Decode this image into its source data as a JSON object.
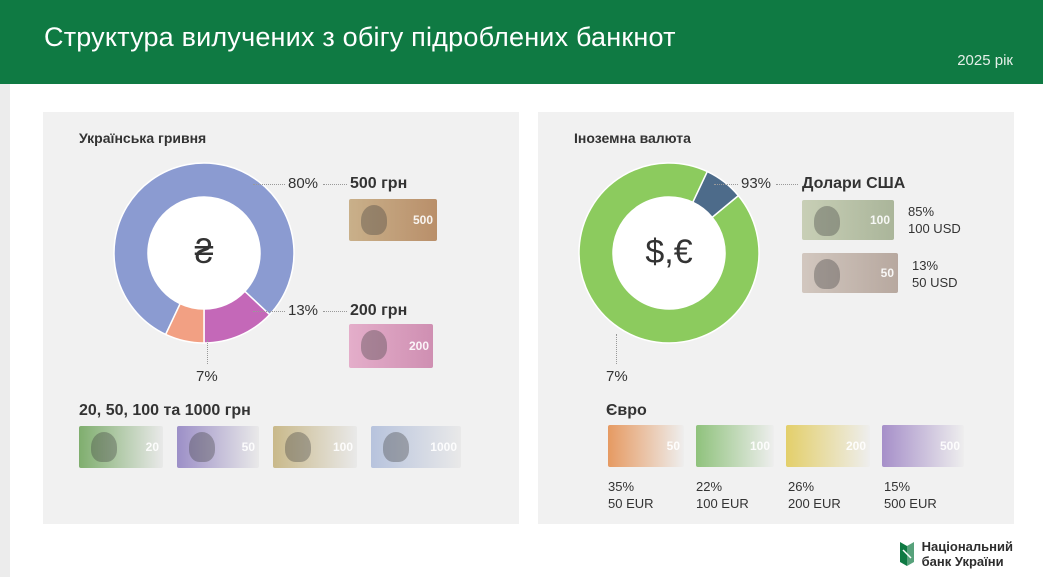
{
  "header": {
    "title": "Структура вилучених з обігу підроблених банкнот",
    "year": "2025 рік"
  },
  "colors": {
    "header_bg": "#0f7a43",
    "uah_main": "#8b9bd1",
    "uah_200": "#c468b8",
    "uah_other": "#f2a083",
    "fx_usd": "#8ccb5e",
    "fx_eur": "#4d6b8a"
  },
  "panels": {
    "uah": {
      "title": "Українська гривня",
      "center_symbol": "₴",
      "labels": {
        "p500": "80%",
        "d500": "500 грн",
        "p200": "13%",
        "d200": "200 грн",
        "pother": "7%",
        "dother": "20, 50, 100 та 1000 грн"
      },
      "notes": [
        {
          "label": "20",
          "color": "#7fae6e"
        },
        {
          "label": "50",
          "color": "#9c8fc7"
        },
        {
          "label": "100",
          "color": "#c9b98a"
        },
        {
          "label": "1000",
          "color": "#b7c3dd"
        }
      ]
    },
    "fx": {
      "title": "Іноземна валюта",
      "center_symbol": "$,€",
      "labels": {
        "pusd": "93%",
        "dusd": "Долари США",
        "usd100_pct": "85%",
        "usd100_lbl": "100 USD",
        "usd50_pct": "13%",
        "usd50_lbl": "50 USD",
        "peur": "7%",
        "deur": "Євро"
      },
      "euro_notes": [
        {
          "label": "50",
          "color": "#e69a62",
          "pct": "35%",
          "den": "50 EUR"
        },
        {
          "label": "100",
          "color": "#8fc27c",
          "pct": "22%",
          "den": "100 EUR"
        },
        {
          "label": "200",
          "color": "#e3cf6a",
          "pct": "26%",
          "den": "200 EUR"
        },
        {
          "label": "500",
          "color": "#a68fc9",
          "pct": "15%",
          "den": "500 EUR"
        }
      ]
    }
  },
  "chart_data": [
    {
      "type": "pie",
      "title": "Українська гривня",
      "categories": [
        "500 грн",
        "200 грн",
        "20, 50, 100 та 1000 грн"
      ],
      "values": [
        80,
        13,
        7
      ],
      "colors": [
        "#8b9bd1",
        "#c468b8",
        "#f2a083"
      ]
    },
    {
      "type": "pie",
      "title": "Іноземна валюта",
      "categories": [
        "Долари США",
        "Євро"
      ],
      "values": [
        93,
        7
      ],
      "colors": [
        "#8ccb5e",
        "#4d6b8a"
      ],
      "breakdown": {
        "Долари США": {
          "categories": [
            "100 USD",
            "50 USD"
          ],
          "values": [
            85,
            13
          ]
        },
        "Євро": {
          "categories": [
            "50 EUR",
            "100 EUR",
            "200 EUR",
            "500 EUR"
          ],
          "values": [
            35,
            22,
            26,
            15
          ]
        }
      }
    }
  ],
  "footer": {
    "logo_line1": "Національний",
    "logo_line2": "банк України"
  }
}
